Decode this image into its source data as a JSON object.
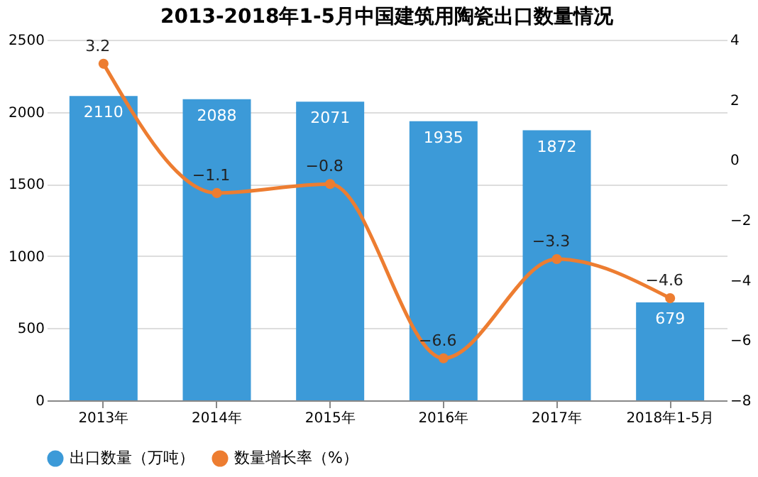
{
  "chart_data": {
    "type": "bar",
    "title": "2013-2018年1-5月中国建筑用陶瓷出口数量情况",
    "categories": [
      "2013年",
      "2014年",
      "2015年",
      "2016年",
      "2017年",
      "2018年1-5月"
    ],
    "series": [
      {
        "name": "出口数量（万吨）",
        "color": "#3c9ad8",
        "values": [
          2110,
          2088,
          2071,
          1935,
          1872,
          679
        ]
      },
      {
        "name": "数量增长率（%）",
        "type": "line",
        "axis": "y2",
        "color": "#ed7d31",
        "values": [
          3.2,
          -1.1,
          -0.8,
          -6.6,
          -3.3,
          -4.6
        ]
      }
    ],
    "ylim": [
      0,
      2500
    ],
    "yticks": [
      0,
      500,
      1000,
      1500,
      2000,
      2500
    ],
    "y2lim": [
      -8,
      4
    ],
    "y2ticks": [
      -8,
      -6,
      -4,
      -2,
      0,
      2,
      4
    ],
    "data_labels": true,
    "grid": "y",
    "legend": "bottom",
    "marker": "circle",
    "line_style": "solid"
  }
}
